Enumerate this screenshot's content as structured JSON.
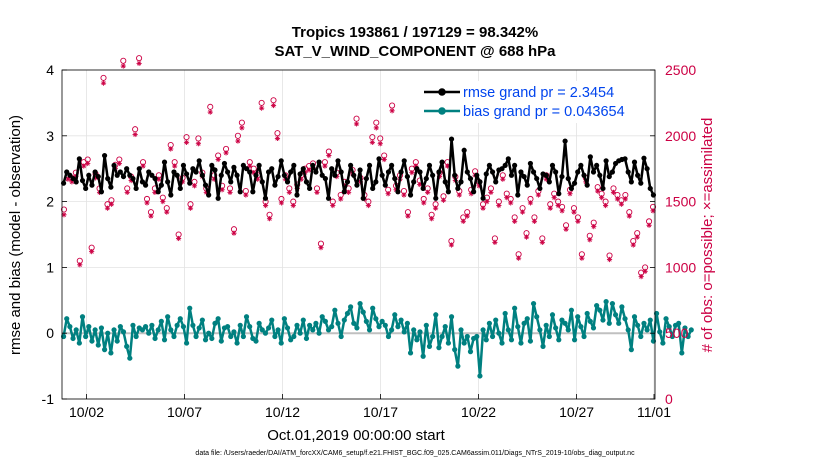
{
  "chart_data": {
    "type": "line",
    "title": "Tropics 193861 / 197129 = 98.342%",
    "subtitle": "SAT_V_WIND_COMPONENT @ 688 hPa",
    "xlabel": "Oct.01,2019 00:00:00 start",
    "ylabel_left": "rmse and bias (model - observation)",
    "ylabel_right": "# of obs: o=possible; ×=assimilated",
    "footer": "data file: /Users/raeder/DAI/ATM_forcXX/CAM6_setup/f.e21.FHIST_BGC.f09_025.CAM6assim.011/Diags_NTrS_2019-10/obs_diag_output.nc",
    "xlim": [
      0.75,
      31.0
    ],
    "ylim_left": [
      -1,
      4
    ],
    "ylim_right": [
      0,
      2500
    ],
    "x_ticks": [
      2,
      7,
      12,
      17,
      22,
      27,
      32
    ],
    "x_tick_labels": [
      "10/02",
      "10/07",
      "10/12",
      "10/17",
      "10/22",
      "10/27",
      "11/01"
    ],
    "y_ticks_left": [
      -1,
      0,
      1,
      2,
      3,
      4
    ],
    "y_ticks_right": [
      0,
      500,
      1000,
      1500,
      2000,
      2500
    ],
    "grid": true,
    "legend_position": "top-right",
    "colors": {
      "rmse": "#000000",
      "bias": "#008080",
      "obs": "#cc0044",
      "zero_line": "#c0c0c0"
    },
    "series": [
      {
        "name": "rmse grand pr = 2.3454",
        "axis": "left",
        "values": [
          2.28,
          2.45,
          2.4,
          2.35,
          2.3,
          2.65,
          2.32,
          2.2,
          2.4,
          2.25,
          2.45,
          2.38,
          2.15,
          2.7,
          2.35,
          2.22,
          2.55,
          2.4,
          2.45,
          2.38,
          2.5,
          2.4,
          2.35,
          2.2,
          2.5,
          2.3,
          2.25,
          2.45,
          2.4,
          2.35,
          2.15,
          2.25,
          2.6,
          2.3,
          2.1,
          2.45,
          2.4,
          2.2,
          2.55,
          2.42,
          2.28,
          2.5,
          2.45,
          2.62,
          2.4,
          2.25,
          2.1,
          2.55,
          2.48,
          2.05,
          2.4,
          2.58,
          2.45,
          2.3,
          2.52,
          2.4,
          2.15,
          2.55,
          2.5,
          2.45,
          2.15,
          2.4,
          2.55,
          2.3,
          2.05,
          2.45,
          2.5,
          2.25,
          2.38,
          2.62,
          2.4,
          2.3,
          2.45,
          2.55,
          2.1,
          2.42,
          2.5,
          2.3,
          2.2,
          2.55,
          2.45,
          2.6,
          2.4,
          2.35,
          2.05,
          2.5,
          2.4,
          2.62,
          2.45,
          2.15,
          2.3,
          2.55,
          2.4,
          2.25,
          2.48,
          2.05,
          2.35,
          2.55,
          2.2,
          2.3,
          2.65,
          2.4,
          2.25,
          2.45,
          2.55,
          2.35,
          2.15,
          2.45,
          2.62,
          2.38,
          2.1,
          2.3,
          2.5,
          2.45,
          2.2,
          2.35,
          2.55,
          2.4,
          2.05,
          2.45,
          2.6,
          2.3,
          2.15,
          2.95,
          2.4,
          2.2,
          2.3,
          2.78,
          2.45,
          2.35,
          2.15,
          2.4,
          2.3,
          2.05,
          2.42,
          2.55,
          2.45,
          2.3,
          2.48,
          2.5,
          2.55,
          2.65,
          2.4,
          2.55,
          2.1,
          2.45,
          2.38,
          2.25,
          2.58,
          2.45,
          2.35,
          2.2,
          2.42,
          2.4,
          2.3,
          2.55,
          2.45,
          2.12,
          2.38,
          2.92,
          2.35,
          2.2,
          2.28,
          2.45,
          2.55,
          2.4,
          2.25,
          2.68,
          2.45,
          2.55,
          2.4,
          2.2,
          2.62,
          2.38,
          2.45,
          2.58,
          2.62,
          2.64,
          2.65,
          2.45,
          2.3,
          2.6,
          2.4,
          2.28,
          2.66,
          2.5,
          2.2,
          2.1
        ]
      },
      {
        "name": "bias grand pr = 0.043654",
        "axis": "left",
        "values": [
          -0.05,
          0.22,
          0.1,
          -0.08,
          0.05,
          -0.15,
          0.25,
          -0.05,
          0.1,
          -0.12,
          0.05,
          -0.18,
          0.08,
          -0.25,
          0.0,
          -0.3,
          0.05,
          -0.12,
          0.1,
          0.02,
          -0.2,
          -0.38,
          0.12,
          -0.05,
          0.08,
          0.05,
          0.1,
          0.0,
          0.12,
          -0.08,
          0.05,
          0.18,
          -0.1,
          0.25,
          0.05,
          -0.05,
          0.12,
          0.22,
          0.1,
          -0.15,
          0.38,
          0.12,
          -0.05,
          0.08,
          0.2,
          -0.1,
          0.0,
          -0.08,
          0.15,
          0.22,
          -0.12,
          0.08,
          0.1,
          -0.05,
          0.02,
          -0.15,
          0.12,
          -0.05,
          0.25,
          0.1,
          -0.08,
          -0.12,
          0.15,
          0.05,
          0.0,
          0.08,
          0.2,
          -0.05,
          0.05,
          -0.15,
          0.22,
          0.08,
          -0.1,
          -0.05,
          0.12,
          0.0,
          0.2,
          -0.08,
          0.12,
          0.05,
          0.15,
          0.0,
          0.25,
          0.18,
          0.05,
          0.1,
          0.35,
          0.15,
          -0.05,
          0.2,
          0.3,
          0.4,
          0.15,
          0.08,
          0.45,
          0.32,
          0.18,
          0.05,
          0.38,
          0.22,
          0.1,
          0.18,
          0.12,
          -0.05,
          0.05,
          0.28,
          0.1,
          0.2,
          0.02,
          0.15,
          -0.3,
          0.05,
          -0.1,
          0.02,
          -0.35,
          0.12,
          -0.2,
          -0.05,
          0.28,
          -0.22,
          -0.05,
          0.1,
          -0.15,
          0.25,
          -0.25,
          -0.5,
          0.05,
          -0.15,
          -0.05,
          -0.28,
          -0.08,
          -0.05,
          -0.65,
          0.05,
          -0.1,
          0.15,
          -0.05,
          0.2,
          0.0,
          -0.15,
          0.3,
          0.05,
          -0.1,
          0.38,
          0.1,
          -0.15,
          0.15,
          0.22,
          -0.12,
          0.45,
          0.25,
          0.05,
          -0.2,
          0.12,
          -0.05,
          0.28,
          0.08,
          -0.1,
          0.2,
          0.15,
          0.05,
          0.35,
          -0.1,
          0.25,
          0.1,
          -0.05,
          0.3,
          0.18,
          0.08,
          0.42,
          0.35,
          0.2,
          0.48,
          0.15,
          0.45,
          0.28,
          0.15,
          0.4,
          0.22,
          0.05,
          -0.25,
          0.25,
          0.12,
          -0.05,
          0.15,
          0.05,
          0.2,
          -0.12,
          0.3,
          0.02,
          -0.15,
          0.22,
          0.1,
          -0.05,
          0.12,
          0.15,
          -0.3,
          0.08,
          -0.05,
          0.05
        ]
      }
    ],
    "obs_possible": [
      1440,
      1700,
      1680,
      1720,
      1050,
      1800,
      1820,
      1150,
      1710,
      1600,
      2440,
      1480,
      1510,
      1780,
      1820,
      2570,
      1600,
      1690,
      2050,
      2590,
      1800,
      1520,
      1420,
      1600,
      1700,
      1530,
      1450,
      1930,
      1800,
      1250,
      1680,
      1990,
      1480,
      1650,
      1980,
      1720,
      1600,
      2220,
      1700,
      1850,
      1620,
      1900,
      1600,
      1290,
      2000,
      2100,
      1580,
      1800,
      1750,
      1700,
      2250,
      1500,
      1400,
      2270,
      2020,
      1520,
      1700,
      1600,
      1500,
      1630,
      1700,
      1750,
      1770,
      1790,
      1600,
      1180,
      1800,
      1880,
      1500,
      1720,
      1550,
      1650,
      1600,
      1740,
      2130,
      1680,
      1550,
      1500,
      1990,
      2100,
      1980,
      1850,
      1590,
      2230,
      1620,
      1700,
      1580,
      1420,
      1750,
      1800,
      1660,
      1520,
      1600,
      1400,
      1480,
      1720,
      1540,
      1800,
      1200,
      1690,
      1580,
      1380,
      1420,
      1590,
      1730,
      1650,
      1480,
      1530,
      1600,
      1220,
      1500,
      1700,
      1560,
      1520,
      1380,
      1100,
      1450,
      1260,
      1520,
      1380,
      1580,
      1220,
      1700,
      1480,
      1560,
      1500,
      1460,
      1320,
      1590,
      1450,
      1380,
      1100,
      1680,
      1240,
      1340,
      1610,
      1560,
      1500,
      1090,
      1600,
      1550,
      1510,
      1550,
      1420,
      1200,
      1260,
      960,
      1000,
      1350,
      1460
    ],
    "obs_assimilated": [
      1400,
      1670,
      1650,
      1690,
      1020,
      1770,
      1790,
      1120,
      1680,
      1570,
      2400,
      1450,
      1480,
      1750,
      1790,
      2530,
      1570,
      1660,
      2010,
      2550,
      1770,
      1490,
      1390,
      1570,
      1670,
      1500,
      1420,
      1900,
      1770,
      1220,
      1650,
      1950,
      1450,
      1620,
      1940,
      1690,
      1570,
      2180,
      1670,
      1820,
      1590,
      1870,
      1570,
      1260,
      1960,
      2060,
      1550,
      1770,
      1720,
      1670,
      2210,
      1470,
      1370,
      2230,
      1980,
      1490,
      1670,
      1570,
      1470,
      1600,
      1670,
      1720,
      1740,
      1760,
      1570,
      1150,
      1770,
      1850,
      1470,
      1690,
      1520,
      1620,
      1570,
      1710,
      2090,
      1650,
      1520,
      1470,
      1950,
      2060,
      1940,
      1820,
      1560,
      2190,
      1590,
      1670,
      1550,
      1390,
      1720,
      1770,
      1630,
      1490,
      1570,
      1370,
      1450,
      1690,
      1510,
      1770,
      1170,
      1660,
      1550,
      1350,
      1390,
      1560,
      1700,
      1620,
      1450,
      1500,
      1570,
      1190,
      1470,
      1670,
      1530,
      1490,
      1350,
      1070,
      1420,
      1230,
      1490,
      1350,
      1550,
      1190,
      1670,
      1450,
      1530,
      1470,
      1430,
      1290,
      1560,
      1420,
      1350,
      1070,
      1650,
      1210,
      1310,
      1580,
      1530,
      1470,
      1060,
      1570,
      1520,
      1480,
      1520,
      1390,
      1170,
      1230,
      930,
      970,
      1320,
      1430
    ]
  }
}
